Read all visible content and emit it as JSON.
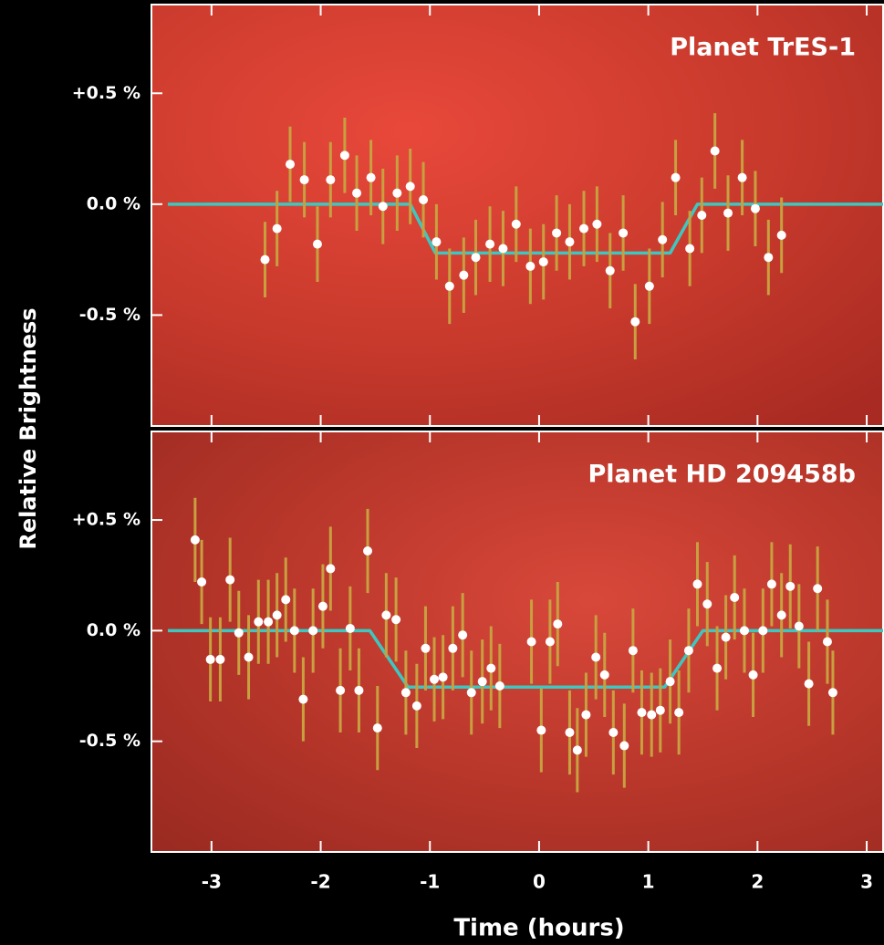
{
  "y_label": "Relative Brightness",
  "x_label": "Time (hours)",
  "chart_data": [
    {
      "type": "scatter",
      "title": "Planet TrES-1",
      "xlim": [
        -3.55,
        3.15
      ],
      "ylim": [
        -1.0,
        0.9
      ],
      "xticks": [
        -3,
        -2,
        -1,
        0,
        1,
        2,
        3
      ],
      "yticks": [
        {
          "value": 0.5,
          "label": "+0.5 %"
        },
        {
          "value": 0,
          "label": "0.0 %"
        },
        {
          "value": -0.5,
          "label": "-0.5 %"
        }
      ],
      "show_x_tick_labels": false,
      "series": [
        {
          "color": "#ffffff",
          "error_color": "#c8a040",
          "error": 0.17,
          "x": [
            -2.51,
            -2.4,
            -2.28,
            -2.15,
            -2.03,
            -1.91,
            -1.78,
            -1.67,
            -1.54,
            -1.43,
            -1.3,
            -1.18,
            -1.06,
            -0.94,
            -0.82,
            -0.69,
            -0.58,
            -0.45,
            -0.33,
            -0.21,
            -0.08,
            0.04,
            0.16,
            0.28,
            0.41,
            0.53,
            0.65,
            0.77,
            0.88,
            1.01,
            1.13,
            1.25,
            1.38,
            1.49,
            1.61,
            1.73,
            1.86,
            1.98,
            2.1,
            2.22
          ],
          "values": [
            -0.25,
            -0.11,
            0.18,
            0.11,
            -0.18,
            0.11,
            0.22,
            0.05,
            0.12,
            -0.01,
            0.05,
            0.08,
            0.02,
            -0.17,
            -0.37,
            -0.32,
            -0.24,
            -0.18,
            -0.2,
            -0.09,
            -0.28,
            -0.26,
            -0.13,
            -0.17,
            -0.11,
            -0.09,
            -0.3,
            -0.13,
            -0.53,
            -0.37,
            -0.16,
            0.12,
            -0.2,
            -0.05,
            0.24,
            -0.04,
            0.12,
            -0.02,
            -0.24,
            -0.14
          ]
        },
        {
          "color": "#3cc8c0",
          "x": [
            -3.4,
            -1.18,
            -0.95,
            1.2,
            1.45,
            3.15
          ],
          "values": [
            0,
            0,
            -0.22,
            -0.22,
            0,
            0
          ]
        }
      ]
    },
    {
      "type": "scatter",
      "title": "Planet HD 209458b",
      "xlim": [
        -3.55,
        3.15
      ],
      "ylim": [
        -1.0,
        0.9
      ],
      "xticks": [
        -3,
        -2,
        -1,
        0,
        1,
        2,
        3
      ],
      "yticks": [
        {
          "value": 0.5,
          "label": "+0.5 %"
        },
        {
          "value": 0,
          "label": "0.0 %"
        },
        {
          "value": -0.5,
          "label": "-0.5 %"
        }
      ],
      "show_x_tick_labels": true,
      "series": [
        {
          "color": "#ffffff",
          "error_color": "#c8a040",
          "error": 0.19,
          "x": [
            -3.15,
            -3.09,
            -3.01,
            -2.92,
            -2.83,
            -2.75,
            -2.66,
            -2.57,
            -2.48,
            -2.4,
            -2.32,
            -2.24,
            -2.16,
            -2.07,
            -1.98,
            -1.91,
            -1.82,
            -1.73,
            -1.65,
            -1.57,
            -1.48,
            -1.4,
            -1.31,
            -1.22,
            -1.12,
            -1.04,
            -0.96,
            -0.88,
            -0.79,
            -0.7,
            -0.62,
            -0.52,
            -0.44,
            -0.36,
            -0.07,
            0.02,
            0.1,
            0.17,
            0.28,
            0.35,
            0.43,
            0.52,
            0.6,
            0.68,
            0.78,
            0.86,
            0.94,
            1.03,
            1.11,
            1.2,
            1.28,
            1.37,
            1.45,
            1.54,
            1.63,
            1.71,
            1.79,
            1.88,
            1.96,
            2.05,
            2.13,
            2.22,
            2.3,
            2.38,
            2.47,
            2.55,
            2.64,
            2.69
          ],
          "values": [
            0.41,
            0.22,
            -0.13,
            -0.13,
            0.23,
            -0.01,
            -0.12,
            0.04,
            0.04,
            0.07,
            0.14,
            0,
            -0.31,
            0,
            0.11,
            0.28,
            -0.27,
            0.01,
            -0.27,
            0.36,
            -0.44,
            0.07,
            0.05,
            -0.28,
            -0.34,
            -0.08,
            -0.22,
            -0.21,
            -0.08,
            -0.02,
            -0.28,
            -0.23,
            -0.17,
            -0.25,
            -0.05,
            -0.45,
            -0.05,
            0.03,
            -0.46,
            -0.54,
            -0.38,
            -0.12,
            -0.2,
            -0.46,
            -0.52,
            -0.09,
            -0.37,
            -0.38,
            -0.36,
            -0.23,
            -0.37,
            -0.09,
            0.21,
            0.12,
            -0.17,
            -0.03,
            0.15,
            0,
            -0.2,
            0,
            0.21,
            0.07,
            0.2,
            0.02,
            -0.24,
            0.19,
            -0.05,
            -0.28
          ]
        },
        {
          "color": "#3cc8c0",
          "x": [
            -3.4,
            -1.55,
            -1.2,
            1.15,
            1.5,
            3.15
          ],
          "values": [
            0,
            0,
            -0.255,
            -0.255,
            0,
            0
          ]
        }
      ]
    }
  ]
}
